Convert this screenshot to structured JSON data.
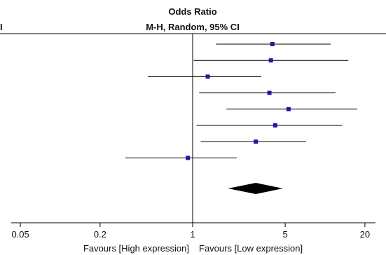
{
  "chart_data": {
    "type": "forest",
    "header": {
      "title": "Odds Ratio",
      "subtitle": "M-H, Random, 95% CI",
      "clipped_left_label": "I"
    },
    "scale": "log",
    "xlim": [
      0.02,
      40
    ],
    "ticks": [
      {
        "value": 0.05,
        "label": "0.05"
      },
      {
        "value": 0.2,
        "label": "0.2"
      },
      {
        "value": 1,
        "label": "1"
      },
      {
        "value": 5,
        "label": "5"
      },
      {
        "value": 20,
        "label": "20"
      }
    ],
    "reference_line": 1,
    "studies": [
      {
        "or": 4.0,
        "lower": 1.5,
        "upper": 11.0
      },
      {
        "or": 3.9,
        "lower": 1.02,
        "upper": 15.0
      },
      {
        "or": 1.3,
        "lower": 0.46,
        "upper": 3.3
      },
      {
        "or": 3.8,
        "lower": 1.12,
        "upper": 12.0
      },
      {
        "or": 5.3,
        "lower": 1.8,
        "upper": 17.5
      },
      {
        "or": 4.2,
        "lower": 1.07,
        "upper": 13.5
      },
      {
        "or": 3.0,
        "lower": 1.15,
        "upper": 7.2
      },
      {
        "or": 0.92,
        "lower": 0.31,
        "upper": 2.15
      }
    ],
    "pooled": {
      "or": 3.0,
      "lower": 1.85,
      "upper": 4.8
    },
    "footer": {
      "left": "Favours [High expression]",
      "right": "Favours [Low expression]"
    },
    "colors": {
      "marker": "#1a1aa6",
      "line": "#000000",
      "diamond": "#000000"
    }
  }
}
